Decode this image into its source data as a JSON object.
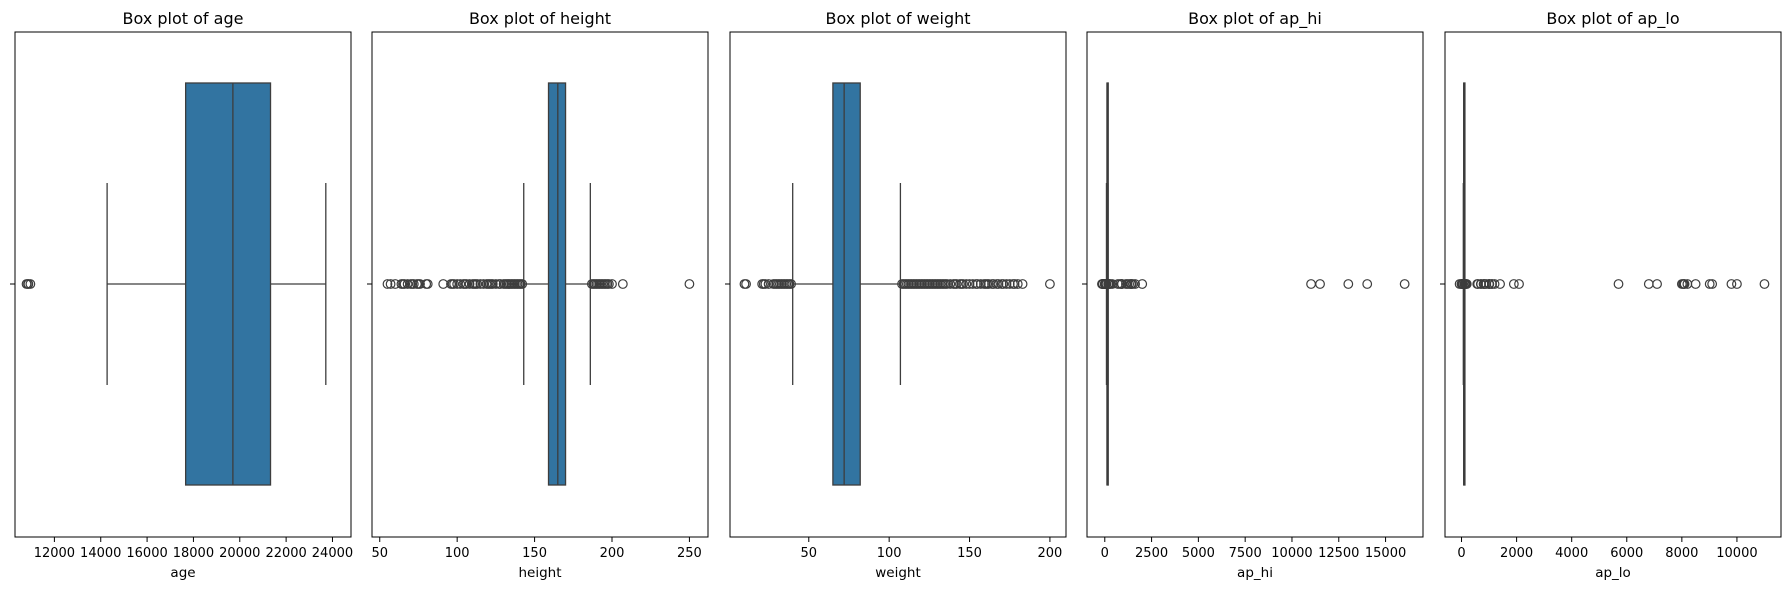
{
  "colors": {
    "box_fill": "#3274a1",
    "line": "#3d3d3d",
    "frame": "#000000"
  },
  "chart_data": [
    {
      "type": "box",
      "title": "Box plot of age",
      "xlabel": "age",
      "xlim": [
        10300,
        24800
      ],
      "ticks": [
        12000,
        14000,
        16000,
        18000,
        20000,
        22000,
        24000
      ],
      "tick_labels": [
        "12000",
        "14000",
        "16000",
        "18000",
        "20000",
        "22000",
        "24000"
      ],
      "whisker_low": 14275,
      "q1": 17664,
      "median": 19703,
      "q3": 21327,
      "whisker_high": 23713,
      "outliers": [
        10798,
        10859,
        10878,
        10964
      ]
    },
    {
      "type": "box",
      "title": "Box plot of height",
      "xlabel": "height",
      "xlim": [
        45,
        262
      ],
      "ticks": [
        50,
        100,
        150,
        200,
        250
      ],
      "tick_labels": [
        "50",
        "100",
        "150",
        "200",
        "250"
      ],
      "whisker_low": 143,
      "q1": 159,
      "median": 165,
      "q3": 170,
      "whisker_high": 186,
      "outliers": [
        55,
        57,
        60,
        64,
        65,
        66,
        68,
        70,
        71,
        72,
        74,
        75,
        76,
        80,
        81,
        91,
        96,
        97,
        98,
        100,
        102,
        104,
        105,
        106,
        108,
        110,
        111,
        112,
        113,
        115,
        117,
        119,
        120,
        121,
        122,
        123,
        125,
        127,
        128,
        130,
        131,
        132,
        133,
        134,
        135,
        136,
        137,
        138,
        139,
        140,
        141,
        142,
        187,
        188,
        189,
        190,
        191,
        192,
        193,
        194,
        195,
        196,
        197,
        198,
        200,
        207,
        250
      ]
    },
    {
      "type": "box",
      "title": "Box plot of weight",
      "xlabel": "weight",
      "xlim": [
        1,
        210
      ],
      "ticks": [
        50,
        100,
        150,
        200
      ],
      "tick_labels": [
        "50",
        "100",
        "150",
        "200"
      ],
      "whisker_low": 40,
      "q1": 65,
      "median": 72,
      "q3": 82,
      "whisker_high": 107,
      "outliers": [
        10,
        11,
        21,
        22,
        23,
        25,
        28,
        29,
        30,
        31,
        32,
        33,
        34,
        35,
        36,
        37,
        38,
        39,
        108,
        109,
        110,
        111,
        112,
        113,
        114,
        115,
        116,
        117,
        118,
        119,
        120,
        121,
        122,
        123,
        124,
        125,
        126,
        127,
        128,
        129,
        130,
        131,
        132,
        133,
        134,
        135,
        136,
        138,
        140,
        141,
        142,
        144,
        145,
        146,
        148,
        150,
        152,
        154,
        155,
        157,
        159,
        160,
        161,
        162,
        164,
        165,
        167,
        168,
        170,
        171,
        173,
        175,
        177,
        178,
        180,
        183,
        200
      ]
    },
    {
      "type": "box",
      "title": "Box plot of ap_hi",
      "xlabel": "ap_hi",
      "xlim": [
        -950,
        17000
      ],
      "ticks": [
        0,
        2500,
        5000,
        7500,
        10000,
        12500,
        15000
      ],
      "tick_labels": [
        "0",
        "2500",
        "5000",
        "7500",
        "10000",
        "12500",
        "15000"
      ],
      "whisker_low": 90,
      "q1": 120,
      "median": 120,
      "q3": 140,
      "whisker_high": 170,
      "outliers": [
        -150,
        -140,
        -120,
        -115,
        -100,
        1,
        7,
        10,
        11,
        12,
        13,
        14,
        15,
        16,
        17,
        20,
        24,
        60,
        70,
        80,
        85,
        180,
        190,
        200,
        220,
        240,
        309,
        401,
        701,
        806,
        906,
        907,
        909,
        1130,
        1205,
        1300,
        1400,
        1409,
        1420,
        1500,
        1620,
        2000,
        11020,
        11500,
        13010,
        14020,
        16020
      ]
    },
    {
      "type": "box",
      "title": "Box plot of ap_lo",
      "xlabel": "ap_lo",
      "xlim": [
        -600,
        11600
      ],
      "ticks": [
        0,
        2000,
        4000,
        6000,
        8000,
        10000
      ],
      "tick_labels": [
        "0",
        "2000",
        "4000",
        "6000",
        "8000",
        "10000"
      ],
      "whisker_low": 65,
      "q1": 80,
      "median": 80,
      "q3": 90,
      "whisker_high": 105,
      "outliers": [
        -70,
        0,
        1,
        10,
        20,
        30,
        40,
        50,
        60,
        110,
        120,
        130,
        150,
        180,
        190,
        570,
        600,
        700,
        710,
        800,
        809,
        850,
        900,
        1000,
        1001,
        1011,
        1100,
        1110,
        1200,
        1400,
        1900,
        2088,
        5700,
        6800,
        7100,
        8000,
        8044,
        8077,
        8100,
        8200,
        8500,
        9011,
        9100,
        9800,
        10000,
        11000
      ]
    }
  ]
}
